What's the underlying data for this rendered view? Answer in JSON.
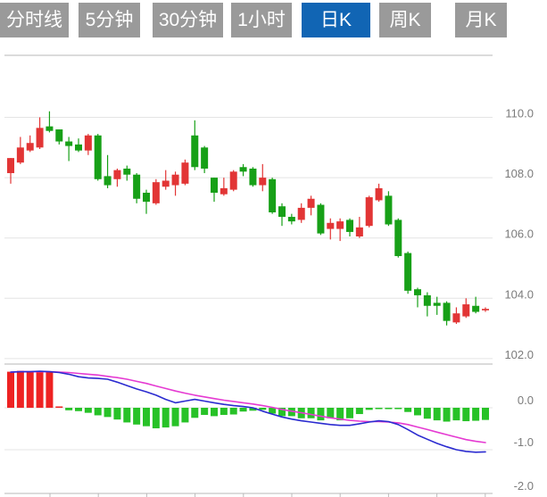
{
  "tabs": [
    {
      "name": "tab-timeshare",
      "label": "分时线",
      "active": false
    },
    {
      "name": "tab-5min",
      "label": "5分钟",
      "active": false
    },
    {
      "name": "tab-30min",
      "label": "30分钟",
      "active": false
    },
    {
      "name": "tab-1hour",
      "label": "1小时",
      "active": false
    },
    {
      "name": "tab-daily-k",
      "label": "日K",
      "active": true
    },
    {
      "name": "tab-weekly-k",
      "label": "周K",
      "active": false
    },
    {
      "name": "tab-monthly-k",
      "label": "月K",
      "active": false
    }
  ],
  "colors": {
    "tab_bg": "#9a9a9a",
    "tab_active_bg": "#1165b4",
    "tab_text": "#ffffff",
    "candle_up": "#e23535",
    "candle_down": "#17a017",
    "macd_bar_up": "#ee2222",
    "macd_bar_down": "#27c227",
    "dif_line": "#2b2bd0",
    "dea_line": "#e53ad2",
    "grid": "#e4e4e4",
    "border": "#cfcfcf",
    "axis_text": "#7b7b7b"
  },
  "chart_data": {
    "type": "candlestick",
    "title": "Daily K-line (日K) with MACD sub-panel, 50 bars, no date labels visible",
    "legend_position": "none",
    "grid": true,
    "price_axis": {
      "side": "right",
      "ticks": [
        110.0,
        108.0,
        106.0,
        104.0,
        102.0
      ],
      "labels": [
        "110.0",
        "108.0",
        "106.0",
        "104.0",
        "102.0"
      ],
      "ylim": [
        101.8,
        112.1
      ]
    },
    "macd_axis": {
      "side": "right",
      "ticks": [
        0.0,
        -1.0,
        -2.0
      ],
      "labels": [
        "0.0",
        "-1.0",
        "-2.0"
      ],
      "ylim": [
        1.05,
        -2.05
      ]
    },
    "candles_ohlc_note": "arrays are [open, high, low, close]; red=up green=down (CN convention)",
    "candles": [
      [
        108.15,
        108.65,
        107.8,
        108.65
      ],
      [
        108.5,
        109.35,
        108.45,
        109.0
      ],
      [
        108.9,
        109.4,
        108.85,
        109.15
      ],
      [
        109.0,
        110.0,
        108.95,
        109.65
      ],
      [
        109.7,
        110.2,
        109.5,
        109.55
      ],
      [
        109.6,
        109.6,
        109.1,
        109.2
      ],
      [
        109.2,
        109.35,
        108.55,
        109.05
      ],
      [
        109.1,
        109.3,
        108.85,
        108.9
      ],
      [
        108.9,
        109.45,
        108.75,
        109.4
      ],
      [
        109.4,
        109.45,
        107.9,
        107.95
      ],
      [
        108.05,
        108.75,
        107.65,
        107.75
      ],
      [
        107.95,
        108.3,
        107.7,
        108.25
      ],
      [
        108.3,
        108.4,
        107.9,
        108.1
      ],
      [
        108.1,
        108.15,
        107.15,
        107.3
      ],
      [
        107.5,
        107.6,
        106.8,
        107.2
      ],
      [
        107.15,
        107.95,
        107.1,
        107.85
      ],
      [
        107.7,
        108.25,
        107.6,
        107.9
      ],
      [
        107.75,
        108.2,
        107.4,
        108.1
      ],
      [
        107.8,
        108.6,
        107.75,
        108.5
      ],
      [
        109.4,
        109.9,
        108.25,
        108.35
      ],
      [
        109.0,
        109.05,
        108.15,
        108.3
      ],
      [
        108.0,
        108.0,
        107.2,
        107.5
      ],
      [
        107.45,
        108.0,
        107.4,
        107.65
      ],
      [
        107.6,
        108.25,
        107.55,
        108.2
      ],
      [
        108.35,
        108.45,
        108.05,
        108.2
      ],
      [
        108.3,
        108.35,
        107.7,
        107.75
      ],
      [
        107.75,
        108.45,
        107.55,
        108.0
      ],
      [
        107.95,
        108.0,
        106.8,
        106.85
      ],
      [
        107.05,
        107.15,
        106.4,
        106.7
      ],
      [
        106.7,
        106.8,
        106.45,
        106.55
      ],
      [
        106.6,
        107.15,
        106.5,
        107.0
      ],
      [
        107.0,
        107.4,
        106.75,
        107.3
      ],
      [
        107.1,
        107.15,
        106.1,
        106.15
      ],
      [
        106.3,
        106.65,
        105.95,
        106.5
      ],
      [
        106.3,
        106.65,
        105.9,
        106.55
      ],
      [
        106.6,
        106.65,
        106.05,
        106.2
      ],
      [
        106.05,
        106.7,
        106.0,
        106.35
      ],
      [
        106.4,
        107.4,
        106.35,
        107.35
      ],
      [
        107.25,
        107.8,
        107.2,
        107.65
      ],
      [
        107.4,
        107.55,
        106.4,
        106.45
      ],
      [
        106.6,
        106.65,
        105.35,
        105.4
      ],
      [
        105.5,
        105.55,
        104.15,
        104.25
      ],
      [
        104.3,
        104.35,
        103.7,
        104.1
      ],
      [
        104.1,
        104.2,
        103.4,
        103.75
      ],
      [
        103.85,
        104.05,
        103.45,
        103.75
      ],
      [
        103.85,
        103.9,
        103.1,
        103.25
      ],
      [
        103.2,
        103.7,
        103.15,
        103.5
      ],
      [
        103.4,
        104.0,
        103.35,
        103.8
      ],
      [
        103.75,
        104.05,
        103.5,
        103.55
      ],
      [
        103.6,
        103.7,
        103.55,
        103.65
      ]
    ],
    "macd": {
      "histogram": [
        0.86,
        0.88,
        0.87,
        0.86,
        0.85,
        0.03,
        -0.06,
        -0.08,
        -0.12,
        -0.18,
        -0.22,
        -0.28,
        -0.35,
        -0.4,
        -0.44,
        -0.49,
        -0.47,
        -0.44,
        -0.35,
        -0.24,
        -0.17,
        -0.2,
        -0.17,
        -0.16,
        -0.09,
        -0.07,
        -0.05,
        -0.14,
        -0.2,
        -0.2,
        -0.25,
        -0.25,
        -0.3,
        -0.25,
        -0.3,
        -0.25,
        -0.15,
        -0.05,
        -0.02,
        -0.01,
        -0.02,
        -0.1,
        -0.18,
        -0.26,
        -0.3,
        -0.33,
        -0.3,
        -0.32,
        -0.31,
        -0.29
      ],
      "dif": [
        0.85,
        0.86,
        0.86,
        0.87,
        0.86,
        0.84,
        0.8,
        0.74,
        0.71,
        0.7,
        0.68,
        0.61,
        0.53,
        0.45,
        0.38,
        0.3,
        0.2,
        0.12,
        0.16,
        0.2,
        0.16,
        0.12,
        0.08,
        0.05,
        0.03,
        0.0,
        -0.08,
        -0.15,
        -0.22,
        -0.27,
        -0.31,
        -0.34,
        -0.37,
        -0.4,
        -0.42,
        -0.42,
        -0.38,
        -0.34,
        -0.31,
        -0.33,
        -0.4,
        -0.52,
        -0.65,
        -0.75,
        -0.85,
        -0.93,
        -1.0,
        -1.04,
        -1.06,
        -1.05
      ],
      "dea": [
        0.85,
        0.86,
        0.86,
        0.86,
        0.86,
        0.85,
        0.84,
        0.82,
        0.8,
        0.78,
        0.75,
        0.72,
        0.68,
        0.63,
        0.58,
        0.52,
        0.46,
        0.4,
        0.35,
        0.3,
        0.26,
        0.22,
        0.18,
        0.15,
        0.12,
        0.09,
        0.05,
        0.01,
        -0.04,
        -0.08,
        -0.12,
        -0.16,
        -0.2,
        -0.24,
        -0.27,
        -0.3,
        -0.32,
        -0.33,
        -0.33,
        -0.34,
        -0.36,
        -0.4,
        -0.46,
        -0.52,
        -0.58,
        -0.64,
        -0.7,
        -0.76,
        -0.8,
        -0.83
      ]
    }
  }
}
